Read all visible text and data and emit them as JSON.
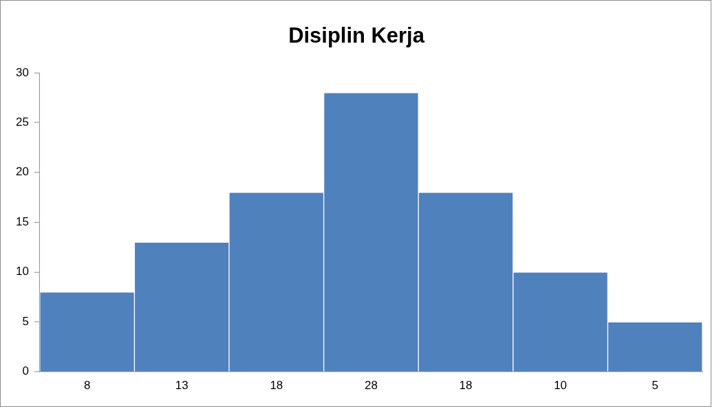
{
  "chart_data": {
    "type": "bar",
    "title": "Disiplin Kerja",
    "categories": [
      "8",
      "13",
      "18",
      "28",
      "18",
      "10",
      "5"
    ],
    "values": [
      8,
      13,
      18,
      28,
      18,
      10,
      5
    ],
    "color": "#4f81bd",
    "ylim": [
      0,
      30
    ],
    "yticks": [
      0,
      5,
      10,
      15,
      20,
      25,
      30
    ],
    "grid": false,
    "legend": false
  }
}
